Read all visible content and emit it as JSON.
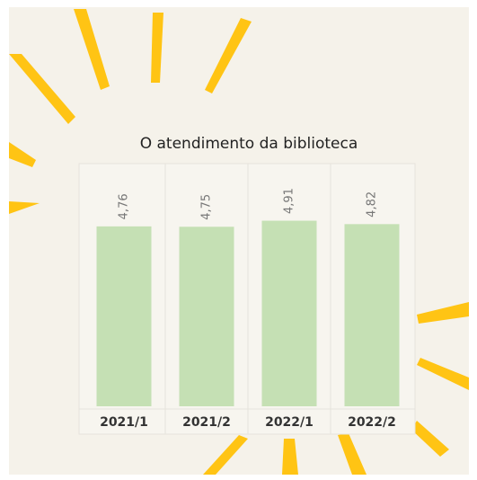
{
  "chart_data": {
    "type": "bar",
    "title": "O atendimento da biblioteca",
    "categories": [
      "2021/1",
      "2021/2",
      "2022/1",
      "2022/2"
    ],
    "values": [
      4.76,
      4.75,
      4.91,
      4.82
    ],
    "value_labels": [
      "4,76",
      "4,75",
      "4,91",
      "4,82"
    ],
    "color": "#c5e0b4",
    "ylim": [
      0,
      6.35
    ]
  }
}
